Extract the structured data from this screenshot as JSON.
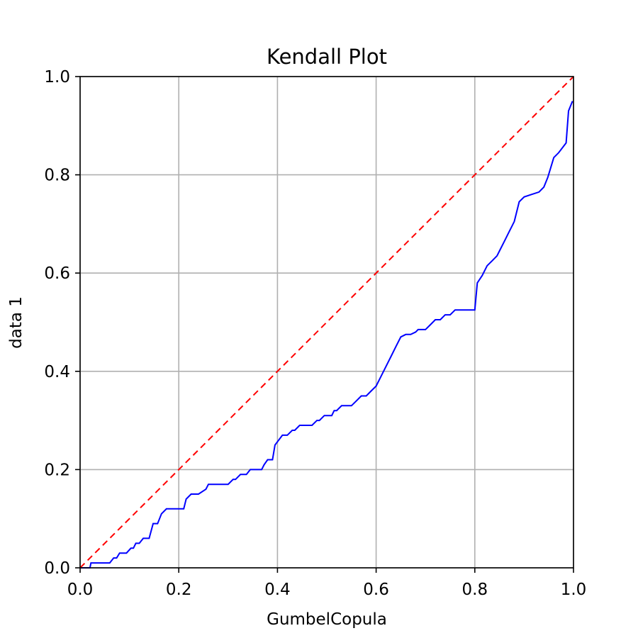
{
  "chart_data": {
    "type": "line",
    "title": "Kendall Plot",
    "xlabel": "GumbelCopula",
    "ylabel": "data 1",
    "xlim": [
      0,
      1
    ],
    "ylim": [
      0,
      1
    ],
    "grid": true,
    "xticks": [
      0.0,
      0.2,
      0.4,
      0.6,
      0.8,
      1.0
    ],
    "yticks": [
      0.0,
      0.2,
      0.4,
      0.6,
      0.8,
      1.0
    ],
    "xtick_labels": [
      "0.0",
      "0.2",
      "0.4",
      "0.6",
      "0.8",
      "1.0"
    ],
    "ytick_labels": [
      "0.0",
      "0.2",
      "0.4",
      "0.6",
      "0.8",
      "1.0"
    ],
    "colors": {
      "series": "#0000ff",
      "reference": "#ff0000",
      "grid": "#b0b0b0"
    },
    "series": [
      {
        "x": [
          0.0,
          0.02,
          0.022,
          0.055,
          0.06,
          0.068,
          0.074,
          0.08,
          0.092,
          0.094,
          0.103,
          0.108,
          0.113,
          0.12,
          0.128,
          0.132,
          0.14,
          0.148,
          0.15,
          0.157,
          0.165,
          0.175,
          0.183,
          0.19,
          0.21,
          0.215,
          0.225,
          0.232,
          0.24,
          0.255,
          0.26,
          0.27,
          0.275,
          0.28,
          0.3,
          0.31,
          0.315,
          0.325,
          0.33,
          0.337,
          0.345,
          0.35,
          0.36,
          0.368,
          0.373,
          0.38,
          0.39,
          0.395,
          0.41,
          0.415,
          0.42,
          0.43,
          0.435,
          0.445,
          0.45,
          0.465,
          0.47,
          0.48,
          0.485,
          0.495,
          0.5,
          0.51,
          0.515,
          0.52,
          0.53,
          0.55,
          0.56,
          0.57,
          0.58,
          0.59,
          0.6,
          0.61,
          0.62,
          0.63,
          0.64,
          0.65,
          0.66,
          0.67,
          0.68,
          0.685,
          0.7,
          0.71,
          0.72,
          0.73,
          0.74,
          0.75,
          0.76,
          0.77,
          0.8,
          0.805,
          0.815,
          0.825,
          0.835,
          0.845,
          0.85,
          0.86,
          0.87,
          0.875,
          0.88,
          0.89,
          0.9,
          0.915,
          0.93,
          0.94,
          0.948,
          0.96,
          0.97,
          0.985,
          0.99,
          0.998
        ],
        "y": [
          0.0,
          0.0,
          0.01,
          0.01,
          0.01,
          0.02,
          0.02,
          0.03,
          0.03,
          0.03,
          0.04,
          0.04,
          0.05,
          0.05,
          0.06,
          0.06,
          0.06,
          0.09,
          0.09,
          0.09,
          0.11,
          0.12,
          0.12,
          0.12,
          0.12,
          0.14,
          0.15,
          0.15,
          0.15,
          0.16,
          0.17,
          0.17,
          0.17,
          0.17,
          0.17,
          0.18,
          0.18,
          0.19,
          0.19,
          0.19,
          0.2,
          0.2,
          0.2,
          0.2,
          0.21,
          0.22,
          0.22,
          0.25,
          0.27,
          0.27,
          0.27,
          0.28,
          0.28,
          0.29,
          0.29,
          0.29,
          0.29,
          0.3,
          0.3,
          0.31,
          0.31,
          0.31,
          0.32,
          0.32,
          0.33,
          0.33,
          0.34,
          0.35,
          0.35,
          0.36,
          0.37,
          0.39,
          0.41,
          0.43,
          0.45,
          0.47,
          0.475,
          0.475,
          0.48,
          0.485,
          0.485,
          0.495,
          0.505,
          0.505,
          0.515,
          0.515,
          0.525,
          0.525,
          0.525,
          0.58,
          0.595,
          0.615,
          0.625,
          0.635,
          0.645,
          0.665,
          0.685,
          0.695,
          0.705,
          0.745,
          0.755,
          0.76,
          0.765,
          0.775,
          0.795,
          0.835,
          0.845,
          0.865,
          0.93,
          0.95
        ]
      },
      {
        "x": [
          0,
          1
        ],
        "y": [
          0,
          1
        ]
      }
    ]
  }
}
